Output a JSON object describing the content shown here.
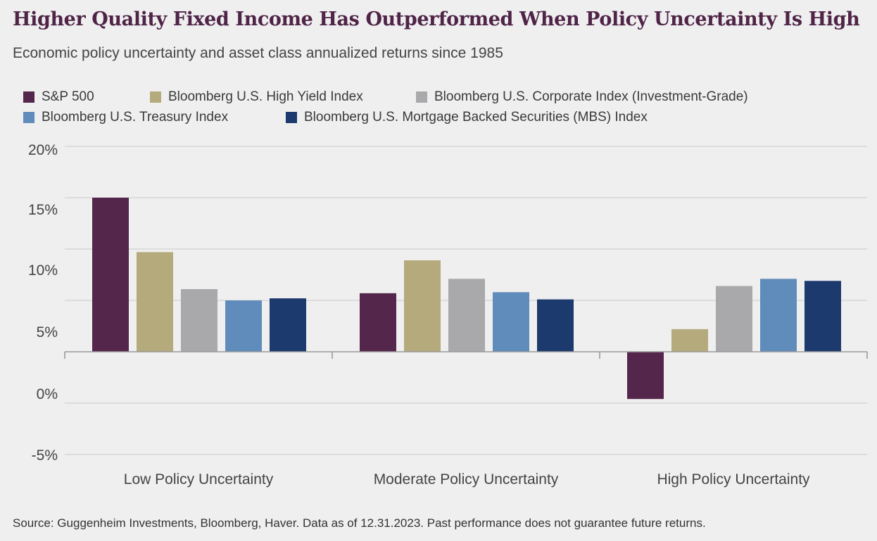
{
  "title": "Higher Quality Fixed Income Has Outperformed When Policy Uncertainty Is High",
  "subtitle": "Economic policy uncertainty and asset class annualized returns since 1985",
  "source": "Source: Guggenheim Investments, Bloomberg, Haver. Data as of 12.31.2023. Past performance does not guarantee future returns.",
  "chart_data": {
    "type": "bar",
    "categories": [
      "Low Policy Uncertainty",
      "Moderate Policy Uncertainty",
      "High Policy Uncertainty"
    ],
    "series": [
      {
        "name": "S&P 500",
        "color": "#55264b",
        "values": [
          15.0,
          5.7,
          -4.6
        ]
      },
      {
        "name": "Bloomberg U.S. High Yield Index",
        "color": "#b5aa7c",
        "values": [
          9.7,
          8.9,
          2.2
        ]
      },
      {
        "name": "Bloomberg U.S. Corporate Index (Investment-Grade)",
        "color": "#a9a9ab",
        "values": [
          6.1,
          7.1,
          6.4
        ]
      },
      {
        "name": "Bloomberg U.S. Treasury Index",
        "color": "#5f8cba",
        "values": [
          5.0,
          5.8,
          7.1
        ]
      },
      {
        "name": "Bloomberg U.S. Mortgage Backed Securities (MBS) Index",
        "color": "#1c3a6e",
        "values": [
          5.2,
          5.1,
          6.9
        ]
      }
    ],
    "yticks": [
      20,
      15,
      10,
      5,
      0,
      -5
    ],
    "ytick_labels": [
      "20%",
      "15%",
      "10%",
      "5%",
      "0%",
      "-5%"
    ],
    "ylim": [
      -10,
      20
    ],
    "grid": true,
    "legend_position": "top"
  }
}
